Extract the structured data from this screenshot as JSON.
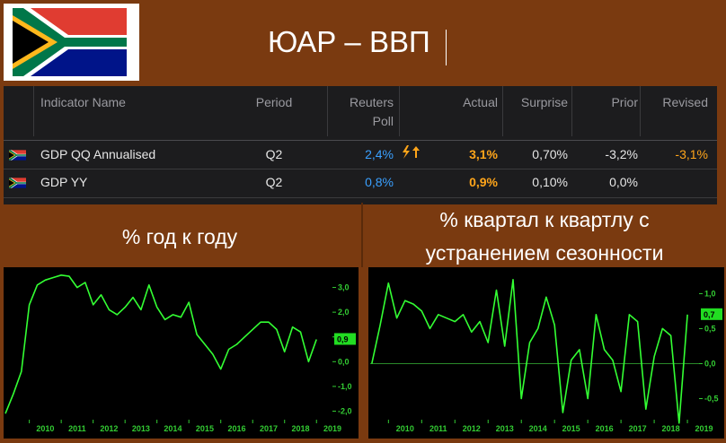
{
  "header": {
    "title": "ЮАР – ВВП"
  },
  "colors": {
    "background": "#7a3a10",
    "table_bg": "#1c1c1e",
    "poll_blue": "#3aa0ff",
    "actual_orange": "#ffa51a",
    "line_green": "#33ff33",
    "axis_green": "#33cc33"
  },
  "table": {
    "columns": [
      "Indicator Name",
      "Period",
      "Reuters Poll",
      "Actual",
      "Surprise",
      "Prior",
      "Revised"
    ],
    "rows": [
      {
        "flag": "south-africa-flag-icon",
        "name": "GDP QQ Annualised",
        "period": "Q2",
        "poll": "2,4%",
        "surprise_icon": "lightning-up-arrow-icon",
        "actual": "3,1%",
        "surprise": "0,70%",
        "prior": "-3,2%",
        "revised": "-3,1%"
      },
      {
        "flag": "south-africa-flag-icon",
        "name": "GDP YY",
        "period": "Q2",
        "poll": "0,8%",
        "actual": "0,9%",
        "surprise": "0,10%",
        "prior": "0,0%",
        "revised": ""
      }
    ]
  },
  "sections": {
    "left_caption": "% год к году",
    "right_caption_line1": "% квартал к квартлу с",
    "right_caption_line2": "устранением сезонности"
  },
  "chart_data": [
    {
      "type": "line",
      "title": "% год к году",
      "xlabel": "",
      "ylabel": "",
      "x_ticks": [
        "2010",
        "2011",
        "2012",
        "2013",
        "2014",
        "2015",
        "2016",
        "2017",
        "2018",
        "2019"
      ],
      "y_ticks": [
        "3,0",
        "2,0",
        "1,0",
        "0,0",
        "-1,0",
        "-2,0"
      ],
      "ylim": [
        -2.2,
        3.6
      ],
      "last_value_label": "0,9",
      "series": [
        {
          "values": [
            {
              "x": 2009.25,
              "y": -2.1
            },
            {
              "x": 2009.5,
              "y": -1.3
            },
            {
              "x": 2009.75,
              "y": -0.4
            },
            {
              "x": 2010.0,
              "y": 2.3
            },
            {
              "x": 2010.25,
              "y": 3.1
            },
            {
              "x": 2010.5,
              "y": 3.3
            },
            {
              "x": 2010.75,
              "y": 3.4
            },
            {
              "x": 2011.0,
              "y": 3.5
            },
            {
              "x": 2011.25,
              "y": 3.45
            },
            {
              "x": 2011.5,
              "y": 3.0
            },
            {
              "x": 2011.75,
              "y": 3.2
            },
            {
              "x": 2012.0,
              "y": 2.3
            },
            {
              "x": 2012.25,
              "y": 2.7
            },
            {
              "x": 2012.5,
              "y": 2.1
            },
            {
              "x": 2012.75,
              "y": 1.9
            },
            {
              "x": 2013.0,
              "y": 2.2
            },
            {
              "x": 2013.25,
              "y": 2.6
            },
            {
              "x": 2013.5,
              "y": 2.1
            },
            {
              "x": 2013.75,
              "y": 3.1
            },
            {
              "x": 2014.0,
              "y": 2.2
            },
            {
              "x": 2014.25,
              "y": 1.7
            },
            {
              "x": 2014.5,
              "y": 1.9
            },
            {
              "x": 2014.75,
              "y": 1.8
            },
            {
              "x": 2015.0,
              "y": 2.4
            },
            {
              "x": 2015.25,
              "y": 1.1
            },
            {
              "x": 2015.5,
              "y": 0.7
            },
            {
              "x": 2015.75,
              "y": 0.3
            },
            {
              "x": 2016.0,
              "y": -0.3
            },
            {
              "x": 2016.25,
              "y": 0.5
            },
            {
              "x": 2016.5,
              "y": 0.7
            },
            {
              "x": 2016.75,
              "y": 1.0
            },
            {
              "x": 2017.0,
              "y": 1.3
            },
            {
              "x": 2017.25,
              "y": 1.6
            },
            {
              "x": 2017.5,
              "y": 1.6
            },
            {
              "x": 2017.75,
              "y": 1.3
            },
            {
              "x": 2018.0,
              "y": 0.4
            },
            {
              "x": 2018.25,
              "y": 1.4
            },
            {
              "x": 2018.5,
              "y": 1.2
            },
            {
              "x": 2018.75,
              "y": 0.0
            },
            {
              "x": 2019.0,
              "y": 0.9
            }
          ]
        }
      ]
    },
    {
      "type": "line",
      "title": "% квартал к квартлу с устранением сезонности",
      "xlabel": "",
      "ylabel": "",
      "x_ticks": [
        "2010",
        "2011",
        "2012",
        "2013",
        "2014",
        "2015",
        "2016",
        "2017",
        "2018",
        "2019"
      ],
      "y_ticks": [
        "1,0",
        "0,5",
        "0,0",
        "-0,5"
      ],
      "ylim": [
        -0.75,
        1.3
      ],
      "last_value_label": "0,7",
      "series": [
        {
          "values": [
            {
              "x": 2009.5,
              "y": 0.0
            },
            {
              "x": 2009.75,
              "y": 0.55
            },
            {
              "x": 2010.0,
              "y": 1.15
            },
            {
              "x": 2010.25,
              "y": 0.65
            },
            {
              "x": 2010.5,
              "y": 0.9
            },
            {
              "x": 2010.75,
              "y": 0.85
            },
            {
              "x": 2011.0,
              "y": 0.75
            },
            {
              "x": 2011.25,
              "y": 0.5
            },
            {
              "x": 2011.5,
              "y": 0.7
            },
            {
              "x": 2011.75,
              "y": 0.65
            },
            {
              "x": 2012.0,
              "y": 0.6
            },
            {
              "x": 2012.25,
              "y": 0.7
            },
            {
              "x": 2012.5,
              "y": 0.45
            },
            {
              "x": 2012.75,
              "y": 0.6
            },
            {
              "x": 2013.0,
              "y": 0.3
            },
            {
              "x": 2013.25,
              "y": 1.05
            },
            {
              "x": 2013.5,
              "y": 0.25
            },
            {
              "x": 2013.75,
              "y": 1.2
            },
            {
              "x": 2014.0,
              "y": -0.5
            },
            {
              "x": 2014.25,
              "y": 0.3
            },
            {
              "x": 2014.5,
              "y": 0.5
            },
            {
              "x": 2014.75,
              "y": 0.95
            },
            {
              "x": 2015.0,
              "y": 0.55
            },
            {
              "x": 2015.25,
              "y": -0.7
            },
            {
              "x": 2015.5,
              "y": 0.05
            },
            {
              "x": 2015.75,
              "y": 0.2
            },
            {
              "x": 2016.0,
              "y": -0.5
            },
            {
              "x": 2016.25,
              "y": 0.7
            },
            {
              "x": 2016.5,
              "y": 0.2
            },
            {
              "x": 2016.75,
              "y": 0.05
            },
            {
              "x": 2017.0,
              "y": -0.4
            },
            {
              "x": 2017.25,
              "y": 0.7
            },
            {
              "x": 2017.5,
              "y": 0.6
            },
            {
              "x": 2017.75,
              "y": -0.65
            },
            {
              "x": 2018.0,
              "y": 0.1
            },
            {
              "x": 2018.25,
              "y": 0.5
            },
            {
              "x": 2018.5,
              "y": 0.4
            },
            {
              "x": 2018.75,
              "y": -0.85
            },
            {
              "x": 2019.0,
              "y": 0.7
            }
          ]
        }
      ]
    }
  ]
}
